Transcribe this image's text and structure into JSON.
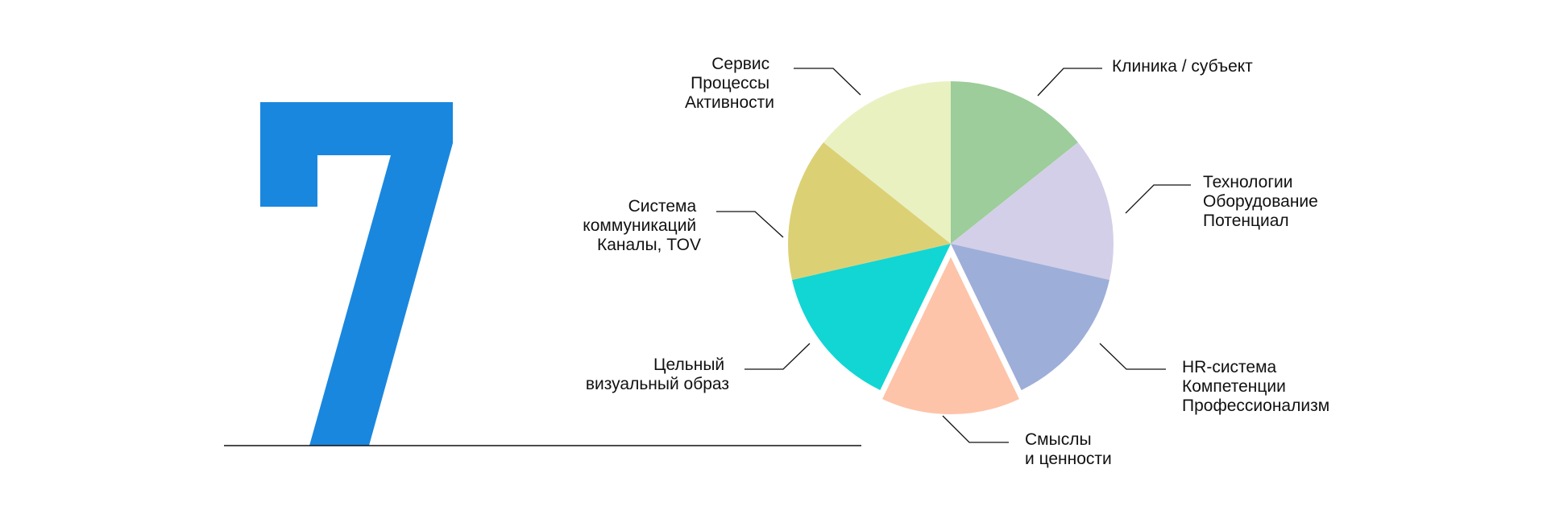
{
  "big_number": {
    "text": "7",
    "color": "#1a87de"
  },
  "chart_data": {
    "type": "pie",
    "slices": [
      {
        "label_lines": [
          "Клиника / субъект"
        ],
        "value": 1,
        "color": "#9ccd9a",
        "exploded": false
      },
      {
        "label_lines": [
          "Технологии",
          "Оборудование",
          "Потенциал"
        ],
        "value": 1,
        "color": "#d3cfe8",
        "exploded": false
      },
      {
        "label_lines": [
          "HR-система",
          "Компетенции",
          "Профессионализм"
        ],
        "value": 1,
        "color": "#9daed9",
        "exploded": false
      },
      {
        "label_lines": [
          "Смыслы",
          "и ценности"
        ],
        "value": 1,
        "color": "#fdc4a9",
        "exploded": true
      },
      {
        "label_lines": [
          "Цельный",
          "визуальный образ"
        ],
        "value": 1,
        "color": "#11d6d4",
        "exploded": false
      },
      {
        "label_lines": [
          "Система",
          "коммуникаций",
          "Каналы, TOV"
        ],
        "value": 1,
        "color": "#dcd075",
        "exploded": false
      },
      {
        "label_lines": [
          "Сервис",
          "Процессы",
          "Активности"
        ],
        "value": 1,
        "color": "#e9f1c1",
        "exploded": false
      }
    ],
    "legend": "none"
  }
}
